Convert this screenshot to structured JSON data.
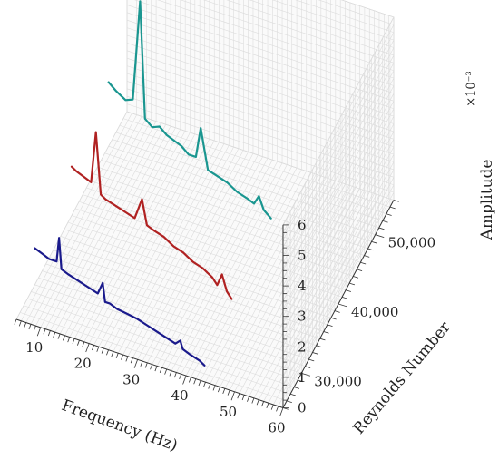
{
  "chart_data": {
    "type": "line",
    "projection": "3d-waterfall",
    "title": "",
    "xlabel": "Frequency (Hz)",
    "ylabel": "Reynolds Number",
    "zlabel": "Amplitude",
    "zlabel_multiplier": "×10⁻³",
    "xlim": [
      5,
      60
    ],
    "ylim": [
      25000,
      55000
    ],
    "zlim": [
      0,
      6
    ],
    "x_ticks": [
      "10",
      "20",
      "30",
      "40",
      "50",
      "60"
    ],
    "y_ticks": [
      "30,000",
      "40,000",
      "50,000"
    ],
    "z_ticks": [
      "0",
      "1",
      "2",
      "3",
      "4",
      "5",
      "6"
    ],
    "grid": true,
    "series": [
      {
        "reynolds": 30000,
        "color": "#1a1a8c",
        "x": [
          5,
          6.5,
          8,
          9.5,
          10,
          10.5,
          12,
          14,
          16,
          18,
          19,
          19.5,
          20.5,
          22,
          24,
          26,
          28,
          30,
          32,
          34,
          35,
          35.5,
          37,
          39,
          40
        ],
        "y": [
          1.2,
          1.1,
          1.0,
          1.0,
          1.8,
          0.8,
          0.7,
          0.6,
          0.5,
          0.4,
          0.8,
          0.2,
          0.2,
          0.1,
          0.05,
          0.0,
          -0.1,
          -0.2,
          -0.3,
          -0.4,
          -0.25,
          -0.5,
          -0.6,
          -0.7,
          -0.8
        ]
      },
      {
        "reynolds": 40000,
        "color": "#b02222",
        "x": [
          5,
          6,
          7.5,
          9,
          10,
          11,
          12,
          14,
          16,
          18,
          19.5,
          20.5,
          22,
          24,
          26,
          28,
          30,
          32,
          34,
          35,
          36,
          37,
          38
        ],
        "y": [
          1.6,
          1.5,
          1.4,
          1.3,
          3.0,
          1.0,
          0.9,
          0.8,
          0.7,
          0.6,
          1.3,
          0.5,
          0.4,
          0.3,
          0.1,
          0.0,
          -0.2,
          -0.3,
          -0.5,
          -0.7,
          -0.3,
          -0.8,
          -1.0
        ]
      },
      {
        "reynolds": 50000,
        "color": "#1a9690",
        "x": [
          5,
          6.5,
          8.5,
          10,
          11.5,
          12.5,
          14,
          15.5,
          17,
          18.5,
          20,
          21.5,
          23,
          24,
          25.5,
          27.5,
          29.5,
          31.5,
          33.5,
          35,
          36,
          37,
          38.5
        ],
        "y": [
          2.1,
          1.9,
          1.7,
          1.8,
          5.1,
          1.3,
          1.1,
          1.2,
          1.0,
          0.9,
          0.8,
          0.6,
          0.6,
          1.6,
          0.3,
          0.2,
          0.1,
          -0.1,
          -0.2,
          -0.3,
          0.0,
          -0.4,
          -0.6
        ]
      }
    ]
  }
}
